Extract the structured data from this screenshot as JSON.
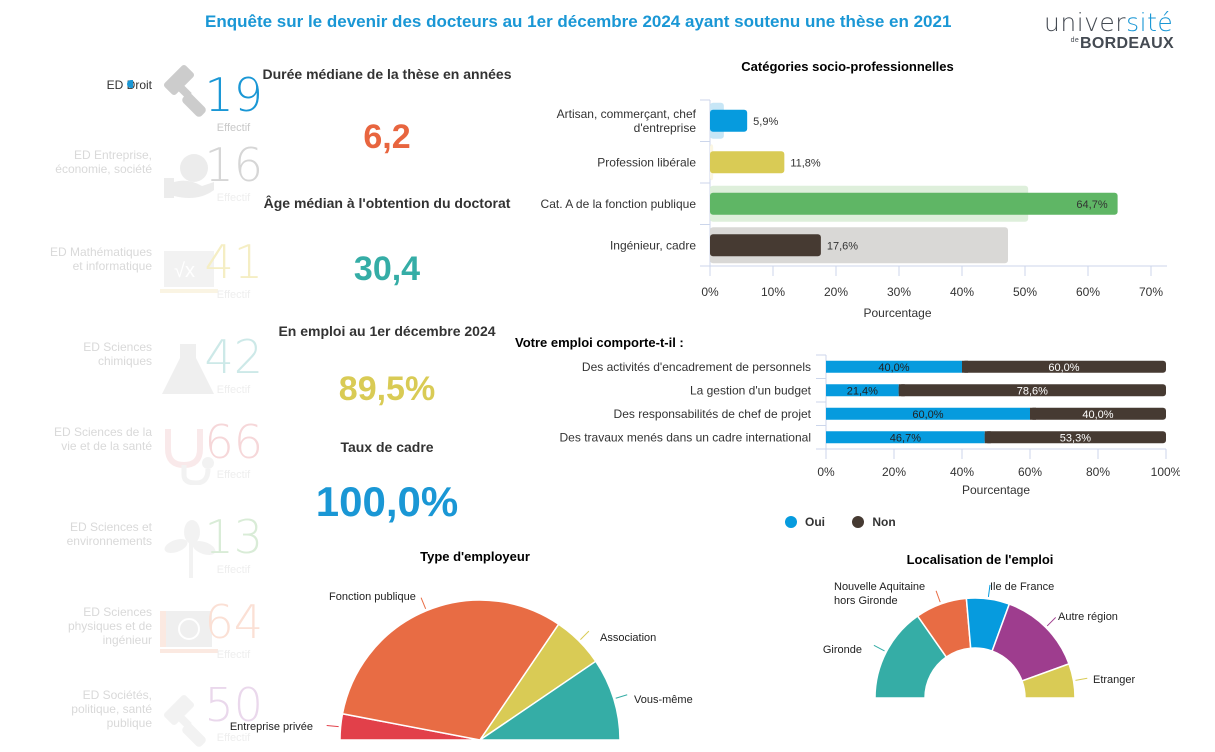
{
  "header": {
    "title": "Enquête sur le devenir des docteurs au 1er décembre 2024 ayant soutenu une thèse en 2021",
    "logo_line1_a": "univer",
    "logo_line1_b": "sité",
    "logo_line2_small": "de",
    "logo_line2": "BORDEAUX"
  },
  "sidebar": {
    "effectif_label": "Effectif",
    "items": [
      {
        "label": "ED Droit",
        "value": "19",
        "color": "#1a97d5",
        "icon": "gavel-icon",
        "active": true
      },
      {
        "label": "ED Entreprise, économie, société",
        "value": "16",
        "color": "#d6d6d6",
        "icon": "hand-euro-icon",
        "active": false
      },
      {
        "label": "ED Mathématiques et informatique",
        "value": "41",
        "color": "#f5eec4",
        "icon": "sqrt-board-icon",
        "active": false
      },
      {
        "label": "ED Sciences chimiques",
        "value": "42",
        "color": "#cde9e8",
        "icon": "flask-icon",
        "active": false
      },
      {
        "label": "ED Sciences de la vie et de la santé",
        "value": "66",
        "color": "#f6d7d9",
        "icon": "stethoscope-icon",
        "active": false
      },
      {
        "label": "ED Sciences et environnements",
        "value": "13",
        "color": "#d9ecd7",
        "icon": "plant-icon",
        "active": false
      },
      {
        "label": "ED Sciences physiques et de ingénieur",
        "value": "64",
        "color": "#fbe0d5",
        "icon": "atom-laptop-icon",
        "active": false
      },
      {
        "label": "ED Sociétés, politique, santé publique",
        "value": "50",
        "color": "#ead8ec",
        "icon": "gavel-icon",
        "active": false
      }
    ]
  },
  "kpis": [
    {
      "title": "Durée médiane de la thèse en années",
      "value": "6,2",
      "color": "#e8653f"
    },
    {
      "title": "Âge médian à l'obtention du doctorat",
      "value": "30,4",
      "color": "#35ada6"
    },
    {
      "title": "En emploi au 1er décembre 2024",
      "value": "89,5%",
      "color": "#d9cb55"
    },
    {
      "title": "Taux de cadre",
      "value": "100,0%",
      "color": "#1a97d5"
    }
  ],
  "chart_data": [
    {
      "type": "bar",
      "title": "Catégories socio-professionnelles",
      "orientation": "horizontal",
      "categories": [
        "Artisan, commerçant, chef d'entreprise",
        "Profession libérale",
        "Cat. A de la fonction publique",
        "Ingénieur, cadre"
      ],
      "values": [
        5.9,
        11.8,
        64.7,
        17.6
      ],
      "value_labels": [
        "5,9%",
        "11,8%",
        "64,7%",
        "17,6%"
      ],
      "reference_values": [
        2.2,
        0.5,
        50.5,
        47.3
      ],
      "colors": [
        "#069bde",
        "#d9cb55",
        "#5fb665",
        "#463a32"
      ],
      "reference_colors": [
        "#c7e6f6",
        "#fbf6e2",
        "#deefdb",
        "#d9d8d6"
      ],
      "xlabel": "Pourcentage",
      "ylabel": "",
      "xlim": [
        0,
        70
      ],
      "xticks": [
        "0%",
        "10%",
        "20%",
        "30%",
        "40%",
        "50%",
        "60%",
        "70%"
      ],
      "grid": false
    },
    {
      "type": "bar",
      "title": "Votre emploi comporte-t-il :",
      "orientation": "horizontal",
      "stacked": true,
      "categories": [
        "Des activités d'encadrement de personnels",
        "La gestion d'un budget",
        "Des responsabilités de chef de projet",
        "Des travaux menés dans un cadre international"
      ],
      "series": [
        {
          "name": "Oui",
          "color": "#069bde",
          "values": [
            40.0,
            21.4,
            60.0,
            46.7
          ],
          "labels": [
            "40,0%",
            "21,4%",
            "60,0%",
            "46,7%"
          ]
        },
        {
          "name": "Non",
          "color": "#463a32",
          "values": [
            60.0,
            78.6,
            40.0,
            53.3
          ],
          "labels": [
            "60,0%",
            "78,6%",
            "40,0%",
            "53,3%"
          ]
        }
      ],
      "xlabel": "Pourcentage",
      "xlim": [
        0,
        100
      ],
      "xticks": [
        "0%",
        "20%",
        "40%",
        "60%",
        "80%",
        "100%"
      ],
      "legend": "bottom",
      "grid": false
    },
    {
      "type": "pie",
      "variant": "semi-circle",
      "title": "Type d'employeur",
      "labels": [
        "Entreprise privée",
        "Fonction publique",
        "Association",
        "Vous-même"
      ],
      "values": [
        6,
        63,
        12,
        19
      ],
      "colors": [
        "#e2404a",
        "#e86c44",
        "#d9cb55",
        "#35ada6"
      ]
    },
    {
      "type": "pie",
      "variant": "semi-donut",
      "title": "Localisation de l'emploi",
      "labels": [
        "Gironde",
        "Nouvelle Aquitaine hors Gironde",
        "Ile de France",
        "Autre région",
        "Etranger"
      ],
      "values": [
        30.6,
        16.7,
        13.9,
        27.8,
        11.1
      ],
      "colors": [
        "#35ada6",
        "#e86c44",
        "#069bde",
        "#9e3d8e",
        "#d9cb55"
      ]
    }
  ]
}
